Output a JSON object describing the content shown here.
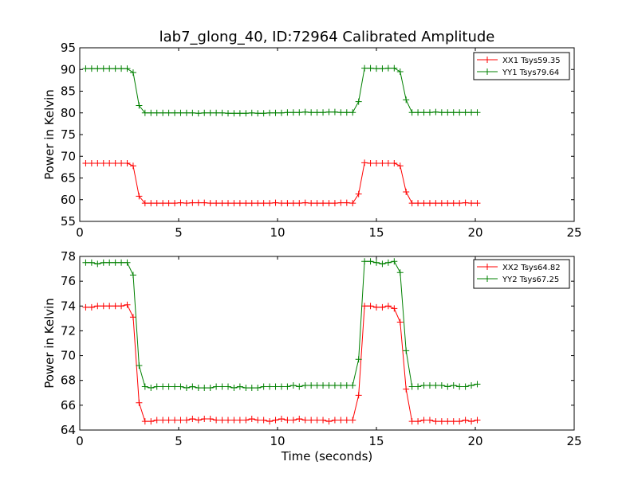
{
  "chart_data": [
    {
      "type": "line",
      "title": "lab7_glong_40, ID:72964 Calibrated Amplitude",
      "xlabel": "",
      "ylabel": "Power in Kelvin",
      "xlim": [
        0,
        25
      ],
      "ylim": [
        55,
        95
      ],
      "xticks": [
        "0",
        "5",
        "10",
        "15",
        "20",
        "25"
      ],
      "yticks": [
        "55",
        "60",
        "65",
        "70",
        "75",
        "80",
        "85",
        "90",
        "95"
      ],
      "legend_position": "top-right",
      "grid": false,
      "x": [
        0.3,
        0.6,
        0.9,
        1.2,
        1.5,
        1.8,
        2.1,
        2.4,
        2.7,
        3.0,
        3.3,
        3.6,
        3.9,
        4.2,
        4.5,
        4.8,
        5.1,
        5.4,
        5.7,
        6.0,
        6.3,
        6.6,
        6.9,
        7.2,
        7.5,
        7.8,
        8.1,
        8.4,
        8.7,
        9.0,
        9.3,
        9.6,
        9.9,
        10.2,
        10.5,
        10.8,
        11.1,
        11.4,
        11.7,
        12.0,
        12.3,
        12.6,
        12.9,
        13.2,
        13.5,
        13.8,
        14.1,
        14.4,
        14.7,
        15.0,
        15.3,
        15.6,
        15.9,
        16.2,
        16.5,
        16.8,
        17.1,
        17.4,
        17.7,
        18.0,
        18.3,
        18.6,
        18.9,
        19.2,
        19.5,
        19.8,
        20.1
      ],
      "series": [
        {
          "name": "XX1 Tsys59.35",
          "color": "#ff0000",
          "values": [
            68.4,
            68.4,
            68.4,
            68.4,
            68.4,
            68.4,
            68.4,
            68.4,
            67.8,
            60.8,
            59.2,
            59.2,
            59.2,
            59.2,
            59.2,
            59.2,
            59.3,
            59.2,
            59.3,
            59.3,
            59.3,
            59.2,
            59.2,
            59.2,
            59.2,
            59.2,
            59.2,
            59.2,
            59.2,
            59.2,
            59.2,
            59.2,
            59.3,
            59.2,
            59.2,
            59.2,
            59.2,
            59.3,
            59.2,
            59.2,
            59.2,
            59.2,
            59.2,
            59.3,
            59.3,
            59.2,
            61.3,
            68.5,
            68.4,
            68.4,
            68.4,
            68.4,
            68.4,
            67.8,
            61.8,
            59.2,
            59.2,
            59.2,
            59.2,
            59.2,
            59.2,
            59.2,
            59.2,
            59.2,
            59.3,
            59.2,
            59.2
          ]
        },
        {
          "name": "YY1 Tsys79.64",
          "color": "#008000",
          "values": [
            90.2,
            90.2,
            90.2,
            90.2,
            90.2,
            90.2,
            90.2,
            90.2,
            89.3,
            81.7,
            80.0,
            80.0,
            80.0,
            80.0,
            80.0,
            80.0,
            80.0,
            80.0,
            80.0,
            79.9,
            80.0,
            80.0,
            80.0,
            80.0,
            79.9,
            79.9,
            79.9,
            79.9,
            80.0,
            79.9,
            79.9,
            80.0,
            80.0,
            80.0,
            80.1,
            80.1,
            80.1,
            80.2,
            80.1,
            80.1,
            80.1,
            80.2,
            80.2,
            80.1,
            80.1,
            80.1,
            82.6,
            90.3,
            90.3,
            90.2,
            90.2,
            90.3,
            90.3,
            89.5,
            83.0,
            80.1,
            80.1,
            80.1,
            80.1,
            80.2,
            80.1,
            80.1,
            80.1,
            80.1,
            80.1,
            80.1,
            80.1
          ]
        }
      ]
    },
    {
      "type": "line",
      "title": "",
      "xlabel": "Time (seconds)",
      "ylabel": "Power in Kelvin",
      "xlim": [
        0,
        25
      ],
      "ylim": [
        64,
        78
      ],
      "xticks": [
        "0",
        "5",
        "10",
        "15",
        "20",
        "25"
      ],
      "yticks": [
        "64",
        "66",
        "68",
        "70",
        "72",
        "74",
        "76",
        "78"
      ],
      "legend_position": "top-right",
      "grid": false,
      "x": [
        0.3,
        0.6,
        0.9,
        1.2,
        1.5,
        1.8,
        2.1,
        2.4,
        2.7,
        3.0,
        3.3,
        3.6,
        3.9,
        4.2,
        4.5,
        4.8,
        5.1,
        5.4,
        5.7,
        6.0,
        6.3,
        6.6,
        6.9,
        7.2,
        7.5,
        7.8,
        8.1,
        8.4,
        8.7,
        9.0,
        9.3,
        9.6,
        9.9,
        10.2,
        10.5,
        10.8,
        11.1,
        11.4,
        11.7,
        12.0,
        12.3,
        12.6,
        12.9,
        13.2,
        13.5,
        13.8,
        14.1,
        14.4,
        14.7,
        15.0,
        15.3,
        15.6,
        15.9,
        16.2,
        16.5,
        16.8,
        17.1,
        17.4,
        17.7,
        18.0,
        18.3,
        18.6,
        18.9,
        19.2,
        19.5,
        19.8,
        20.1
      ],
      "series": [
        {
          "name": "XX2 Tsys64.82",
          "color": "#ff0000",
          "values": [
            73.9,
            73.9,
            74.0,
            74.0,
            74.0,
            74.0,
            74.0,
            74.1,
            73.1,
            66.2,
            64.7,
            64.7,
            64.8,
            64.8,
            64.8,
            64.8,
            64.8,
            64.8,
            64.9,
            64.8,
            64.9,
            64.9,
            64.8,
            64.8,
            64.8,
            64.8,
            64.8,
            64.8,
            64.9,
            64.8,
            64.8,
            64.7,
            64.8,
            64.9,
            64.8,
            64.8,
            64.9,
            64.8,
            64.8,
            64.8,
            64.8,
            64.7,
            64.8,
            64.8,
            64.8,
            64.8,
            66.8,
            74.0,
            74.0,
            73.9,
            73.9,
            74.0,
            73.8,
            72.7,
            67.3,
            64.7,
            64.7,
            64.8,
            64.8,
            64.7,
            64.7,
            64.7,
            64.7,
            64.7,
            64.8,
            64.7,
            64.8
          ]
        },
        {
          "name": "YY2 Tsys67.25",
          "color": "#008000",
          "values": [
            77.5,
            77.5,
            77.4,
            77.5,
            77.5,
            77.5,
            77.5,
            77.5,
            76.5,
            69.2,
            67.5,
            67.4,
            67.5,
            67.5,
            67.5,
            67.5,
            67.5,
            67.4,
            67.5,
            67.4,
            67.4,
            67.4,
            67.5,
            67.5,
            67.5,
            67.4,
            67.5,
            67.4,
            67.4,
            67.4,
            67.5,
            67.5,
            67.5,
            67.5,
            67.5,
            67.6,
            67.5,
            67.6,
            67.6,
            67.6,
            67.6,
            67.6,
            67.6,
            67.6,
            67.6,
            67.6,
            69.7,
            77.6,
            77.6,
            77.5,
            77.4,
            77.5,
            77.6,
            76.7,
            70.4,
            67.5,
            67.5,
            67.6,
            67.6,
            67.6,
            67.6,
            67.5,
            67.6,
            67.5,
            67.5,
            67.6,
            67.7
          ]
        }
      ]
    }
  ]
}
